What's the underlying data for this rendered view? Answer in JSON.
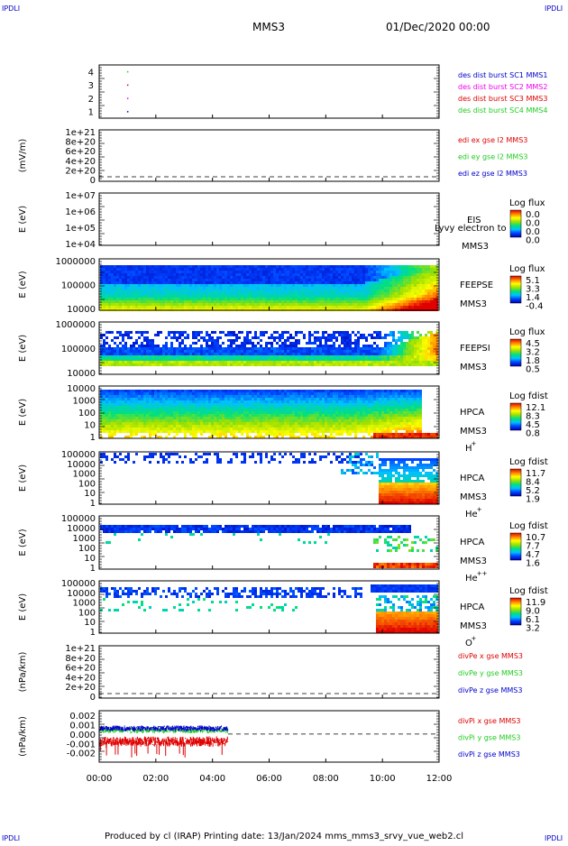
{
  "header": {
    "corner_tl": "IPDLI",
    "corner_tr": "IPDLI",
    "corner_bl": "IPDLI",
    "corner_br": "IPDLI",
    "title": "MMS3",
    "datetime": "01/Dec/2020 00:00"
  },
  "footer": {
    "text": "Produced by cl (IRAP)   Printing date: 13/Jan/2024   mms_mms3_srvy_vue_web2.cl"
  },
  "colors": {
    "red": "#e00000",
    "green": "#22cc22",
    "blue": "#0000cc",
    "magenta": "#ee00ee",
    "colorbar": [
      "#0000b0",
      "#0040ff",
      "#00c0ff",
      "#00e080",
      "#a0e000",
      "#ffff00",
      "#ff8000",
      "#e00000"
    ]
  },
  "chart_data": [
    {
      "type": "scatter",
      "panel": "burst",
      "ylim": [
        0.5,
        4.5
      ],
      "yticks": [
        "1",
        "2",
        "3",
        "4"
      ],
      "points": [
        {
          "x": 1.0,
          "y": 1
        },
        {
          "x": 1.0,
          "y": 2
        },
        {
          "x": 1.0,
          "y": 3
        },
        {
          "x": 1.0,
          "y": 4
        }
      ],
      "legend": [
        {
          "label": "des dist burst SC1 MMS1",
          "color": "blue"
        },
        {
          "label": "des dist burst SC2 MMS2",
          "color": "magenta"
        },
        {
          "label": "des dist burst SC3 MMS3",
          "color": "red"
        },
        {
          "label": "des dist burst SC4 MMS4",
          "color": "green"
        }
      ]
    },
    {
      "type": "line",
      "panel": "edi",
      "ylabel": "(mV/m)",
      "yticks": [
        "1e+21",
        "8e+20",
        "6e+20",
        "4e+20",
        "2e+20",
        "0"
      ],
      "legend": [
        {
          "label": "edi ex gse l2 MMS3",
          "color": "red"
        },
        {
          "label": "edi ey gse l2 MMS3",
          "color": "green"
        },
        {
          "label": "edi ez gse l2 MMS3",
          "color": "blue"
        }
      ]
    },
    {
      "type": "heatmap",
      "panel": "eis",
      "ylabel": "E (eV)",
      "yticks": [
        "1e+07",
        "1e+06",
        "1e+05",
        "1e+04"
      ],
      "side_labels": [
        "EIS",
        "MMS3"
      ],
      "overlay_text": "Lyvy electron to",
      "cbar_title": "Log flux",
      "cbar_ticks": [
        "0.0",
        "0.0",
        "0.0",
        "0.0"
      ]
    },
    {
      "type": "heatmap",
      "panel": "feepse",
      "ylabel": "E (eV)",
      "yticks": [
        "1000000",
        "100000",
        "10000"
      ],
      "side_labels": [
        "FEEPSE",
        "MMS3"
      ],
      "cbar_title": "Log flux",
      "cbar_ticks": [
        "5.1",
        "3.3",
        "1.4",
        "-0.4"
      ]
    },
    {
      "type": "heatmap",
      "panel": "feepsi",
      "ylabel": "E (eV)",
      "yticks": [
        "1000000",
        "100000",
        "10000"
      ],
      "side_labels": [
        "FEEPSI",
        "MMS3"
      ],
      "cbar_title": "Log flux",
      "cbar_ticks": [
        "4.5",
        "3.2",
        "1.8",
        "0.5"
      ]
    },
    {
      "type": "heatmap",
      "panel": "hpca_h",
      "ylabel": "E (eV)",
      "yticks": [
        "10000",
        "1000",
        "100",
        "10",
        "1"
      ],
      "side_labels": [
        "HPCA",
        "MMS3",
        "H",
        "+"
      ],
      "cbar_title": "Log fdist",
      "cbar_ticks": [
        "12.1",
        "8.3",
        "4.5",
        "0.8"
      ]
    },
    {
      "type": "heatmap",
      "panel": "hpca_he",
      "ylabel": "E (eV)",
      "yticks": [
        "100000",
        "10000",
        "1000",
        "100",
        "10",
        "1"
      ],
      "side_labels": [
        "HPCA",
        "MMS3",
        "He",
        "+"
      ],
      "cbar_title": "Log fdist",
      "cbar_ticks": [
        "11.7",
        "8.4",
        "5.2",
        "1.9"
      ]
    },
    {
      "type": "heatmap",
      "panel": "hpca_hepp",
      "ylabel": "E (eV)",
      "yticks": [
        "100000",
        "10000",
        "1000",
        "100",
        "10",
        "1"
      ],
      "side_labels": [
        "HPCA",
        "MMS3",
        "He",
        "++"
      ],
      "cbar_title": "Log fdist",
      "cbar_ticks": [
        "10.7",
        "7.7",
        "4.7",
        "1.6"
      ]
    },
    {
      "type": "heatmap",
      "panel": "hpca_o",
      "ylabel": "E (eV)",
      "yticks": [
        "100000",
        "10000",
        "1000",
        "100",
        "10",
        "1"
      ],
      "side_labels": [
        "HPCA",
        "MMS3",
        "O",
        "+"
      ],
      "cbar_title": "Log fdist",
      "cbar_ticks": [
        "11.9",
        "9.0",
        "6.1",
        "3.2"
      ]
    },
    {
      "type": "line",
      "panel": "divpe",
      "ylabel": "(nPa/km)",
      "yticks": [
        "1e+21",
        "8e+20",
        "6e+20",
        "4e+20",
        "2e+20",
        "0"
      ],
      "legend": [
        {
          "label": "divPe x gse MMS3",
          "color": "red"
        },
        {
          "label": "divPe y gse MMS3",
          "color": "green"
        },
        {
          "label": "divPe z gse MMS3",
          "color": "blue"
        }
      ]
    },
    {
      "type": "line",
      "panel": "divpi",
      "ylabel": "(nPa/km)",
      "ylim": [
        -0.003,
        0.0025
      ],
      "yticks": [
        "0.002",
        "0.001",
        "0.000",
        "-0.001",
        "-0.002"
      ],
      "data_end_hour": 4.55,
      "series_levels": [
        {
          "color": "red",
          "mean": -0.0008
        },
        {
          "color": "green",
          "mean": 0.0004
        },
        {
          "color": "blue",
          "mean": 0.0006
        }
      ],
      "legend": [
        {
          "label": "divPi x gse MMS3",
          "color": "red"
        },
        {
          "label": "divPi y gse MMS3",
          "color": "green"
        },
        {
          "label": "divPi z gse MMS3",
          "color": "blue"
        }
      ]
    }
  ],
  "xaxis": {
    "ticks": [
      "00:00",
      "02:00",
      "04:00",
      "06:00",
      "08:00",
      "10:00",
      "12:00"
    ],
    "xlim": [
      0,
      12
    ]
  }
}
